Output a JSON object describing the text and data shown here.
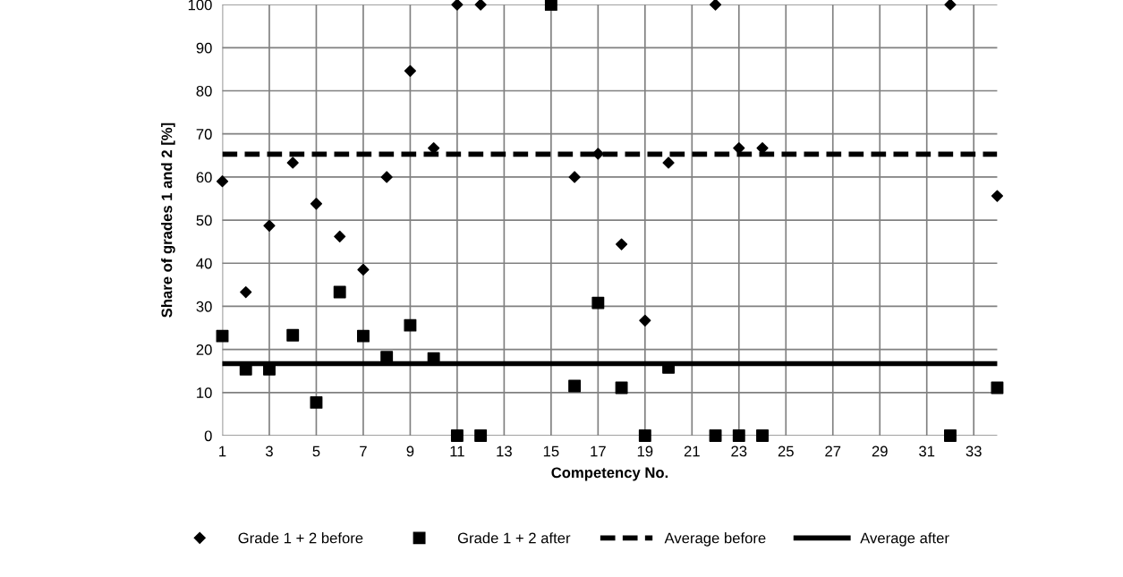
{
  "chart_data": {
    "type": "scatter",
    "xlabel": "Competency No.",
    "ylabel": "Share of grades 1 and 2 [%]",
    "x": [
      1,
      2,
      3,
      4,
      5,
      6,
      7,
      8,
      9,
      10,
      11,
      12,
      13,
      14,
      15,
      16,
      17,
      18,
      19,
      20,
      21,
      22,
      23,
      24,
      25,
      26,
      27,
      28,
      29,
      30,
      31,
      32,
      33,
      34
    ],
    "series": [
      {
        "name": "Grade 1 + 2 before",
        "color": "#000000",
        "marker": "diamond",
        "values": [
          59,
          33.3,
          48.7,
          63.3,
          53.8,
          46.2,
          38.5,
          60,
          84.6,
          66.7,
          100,
          100,
          null,
          null,
          null,
          60,
          65.4,
          44.4,
          26.7,
          63.3,
          null,
          100,
          66.7,
          66.7,
          null,
          null,
          null,
          null,
          null,
          null,
          null,
          100,
          null,
          55.6
        ]
      },
      {
        "name": "Grade 1 + 2 after",
        "color": "#000000",
        "marker": "square",
        "values": [
          23.1,
          15.4,
          15.4,
          23.3,
          7.7,
          33.3,
          23.1,
          18.2,
          25.6,
          17.9,
          0,
          0,
          null,
          null,
          100,
          11.5,
          30.8,
          11.1,
          0,
          15.8,
          null,
          0,
          0,
          0,
          null,
          null,
          null,
          null,
          null,
          null,
          null,
          0,
          null,
          11.1
        ]
      }
    ],
    "ref_lines": [
      {
        "axis": "y",
        "value": 65.3,
        "label": "Average before",
        "color": "#000000",
        "line_style": "dashed"
      },
      {
        "axis": "y",
        "value": 16.7,
        "label": "Average after",
        "color": "#000000",
        "line_style": "solid"
      }
    ],
    "xlim": [
      1,
      34
    ],
    "xticks": [
      1,
      3,
      5,
      7,
      9,
      11,
      13,
      15,
      17,
      19,
      21,
      23,
      25,
      27,
      29,
      31,
      33
    ],
    "ylim": [
      0,
      100
    ],
    "yticks": [
      0,
      10,
      20,
      30,
      40,
      50,
      60,
      70,
      80,
      90,
      100
    ],
    "grid": true,
    "legend": "bottom"
  }
}
